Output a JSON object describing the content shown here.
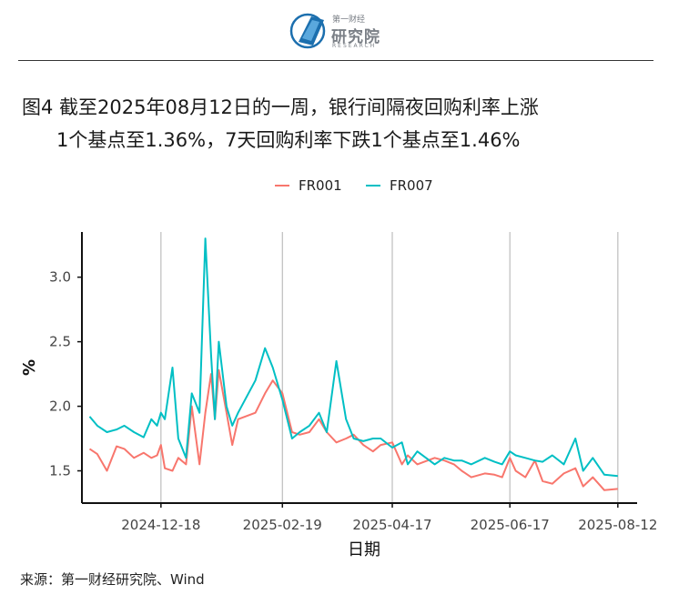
{
  "header": {
    "logo_top": "第一财经",
    "logo_cn": "研究院",
    "logo_en": "RESEARCH"
  },
  "title": {
    "line1": "图4  截至2025年08月12日的一周，银行间隔夜回购利率上涨",
    "line2": "1个基点至1.36%，7天回购利率下跌1个基点至1.46%"
  },
  "source": "来源：第一财经研究院、Wind",
  "chart_data": {
    "type": "line",
    "xlabel": "日期",
    "ylabel": "%",
    "x_tick_labels": [
      "2024-12-18",
      "2025-02-19",
      "2025-04-17",
      "2025-06-17",
      "2025-08-12"
    ],
    "y_ticks": [
      1.5,
      2.0,
      2.5,
      3.0
    ],
    "y_tick_labels": [
      "1.5",
      "2.0",
      "2.5",
      "3.0"
    ],
    "ylim": [
      1.25,
      3.35
    ],
    "xlim": [
      "2024-11-07",
      "2025-08-22"
    ],
    "grid": "vertical lines at x ticks",
    "legend_position": "top",
    "x": [
      "2024-11-11",
      "2024-11-15",
      "2024-11-20",
      "2024-11-25",
      "2024-11-29",
      "2024-12-04",
      "2024-12-09",
      "2024-12-13",
      "2024-12-16",
      "2024-12-18",
      "2024-12-20",
      "2024-12-24",
      "2024-12-27",
      "2024-12-31",
      "2025-01-03",
      "2025-01-07",
      "2025-01-10",
      "2025-01-13",
      "2025-01-15",
      "2025-01-17",
      "2025-01-21",
      "2025-01-24",
      "2025-01-27",
      "2025-02-05",
      "2025-02-10",
      "2025-02-14",
      "2025-02-19",
      "2025-02-24",
      "2025-02-28",
      "2025-03-05",
      "2025-03-10",
      "2025-03-14",
      "2025-03-19",
      "2025-03-24",
      "2025-03-28",
      "2025-04-02",
      "2025-04-07",
      "2025-04-11",
      "2025-04-17",
      "2025-04-22",
      "2025-04-25",
      "2025-04-30",
      "2025-05-09",
      "2025-05-14",
      "2025-05-19",
      "2025-05-23",
      "2025-05-28",
      "2025-06-04",
      "2025-06-09",
      "2025-06-13",
      "2025-06-17",
      "2025-06-20",
      "2025-06-25",
      "2025-06-30",
      "2025-07-04",
      "2025-07-09",
      "2025-07-15",
      "2025-07-21",
      "2025-07-25",
      "2025-07-30",
      "2025-08-05",
      "2025-08-12"
    ],
    "series": [
      {
        "name": "FR001",
        "color": "#F8766D",
        "values": [
          1.67,
          1.63,
          1.5,
          1.69,
          1.67,
          1.6,
          1.64,
          1.6,
          1.62,
          1.7,
          1.52,
          1.5,
          1.6,
          1.55,
          2.0,
          1.55,
          1.95,
          2.25,
          1.9,
          2.28,
          1.95,
          1.7,
          1.9,
          1.95,
          2.1,
          2.2,
          2.1,
          1.8,
          1.78,
          1.8,
          1.9,
          1.8,
          1.72,
          1.75,
          1.78,
          1.7,
          1.65,
          1.7,
          1.72,
          1.55,
          1.62,
          1.55,
          1.6,
          1.58,
          1.55,
          1.5,
          1.45,
          1.48,
          1.47,
          1.45,
          1.6,
          1.5,
          1.45,
          1.58,
          1.42,
          1.4,
          1.48,
          1.52,
          1.38,
          1.45,
          1.35,
          1.36
        ]
      },
      {
        "name": "FR007",
        "color": "#00BFC4",
        "values": [
          1.92,
          1.85,
          1.8,
          1.82,
          1.85,
          1.8,
          1.76,
          1.9,
          1.85,
          1.95,
          1.9,
          2.3,
          1.75,
          1.6,
          2.1,
          1.95,
          3.3,
          2.4,
          1.9,
          2.5,
          2.0,
          1.85,
          1.95,
          2.2,
          2.45,
          2.3,
          2.05,
          1.75,
          1.8,
          1.85,
          1.95,
          1.8,
          2.35,
          1.9,
          1.75,
          1.73,
          1.75,
          1.75,
          1.68,
          1.72,
          1.55,
          1.65,
          1.55,
          1.6,
          1.58,
          1.58,
          1.55,
          1.6,
          1.57,
          1.55,
          1.65,
          1.62,
          1.6,
          1.58,
          1.57,
          1.62,
          1.55,
          1.75,
          1.5,
          1.6,
          1.47,
          1.46
        ]
      }
    ]
  }
}
